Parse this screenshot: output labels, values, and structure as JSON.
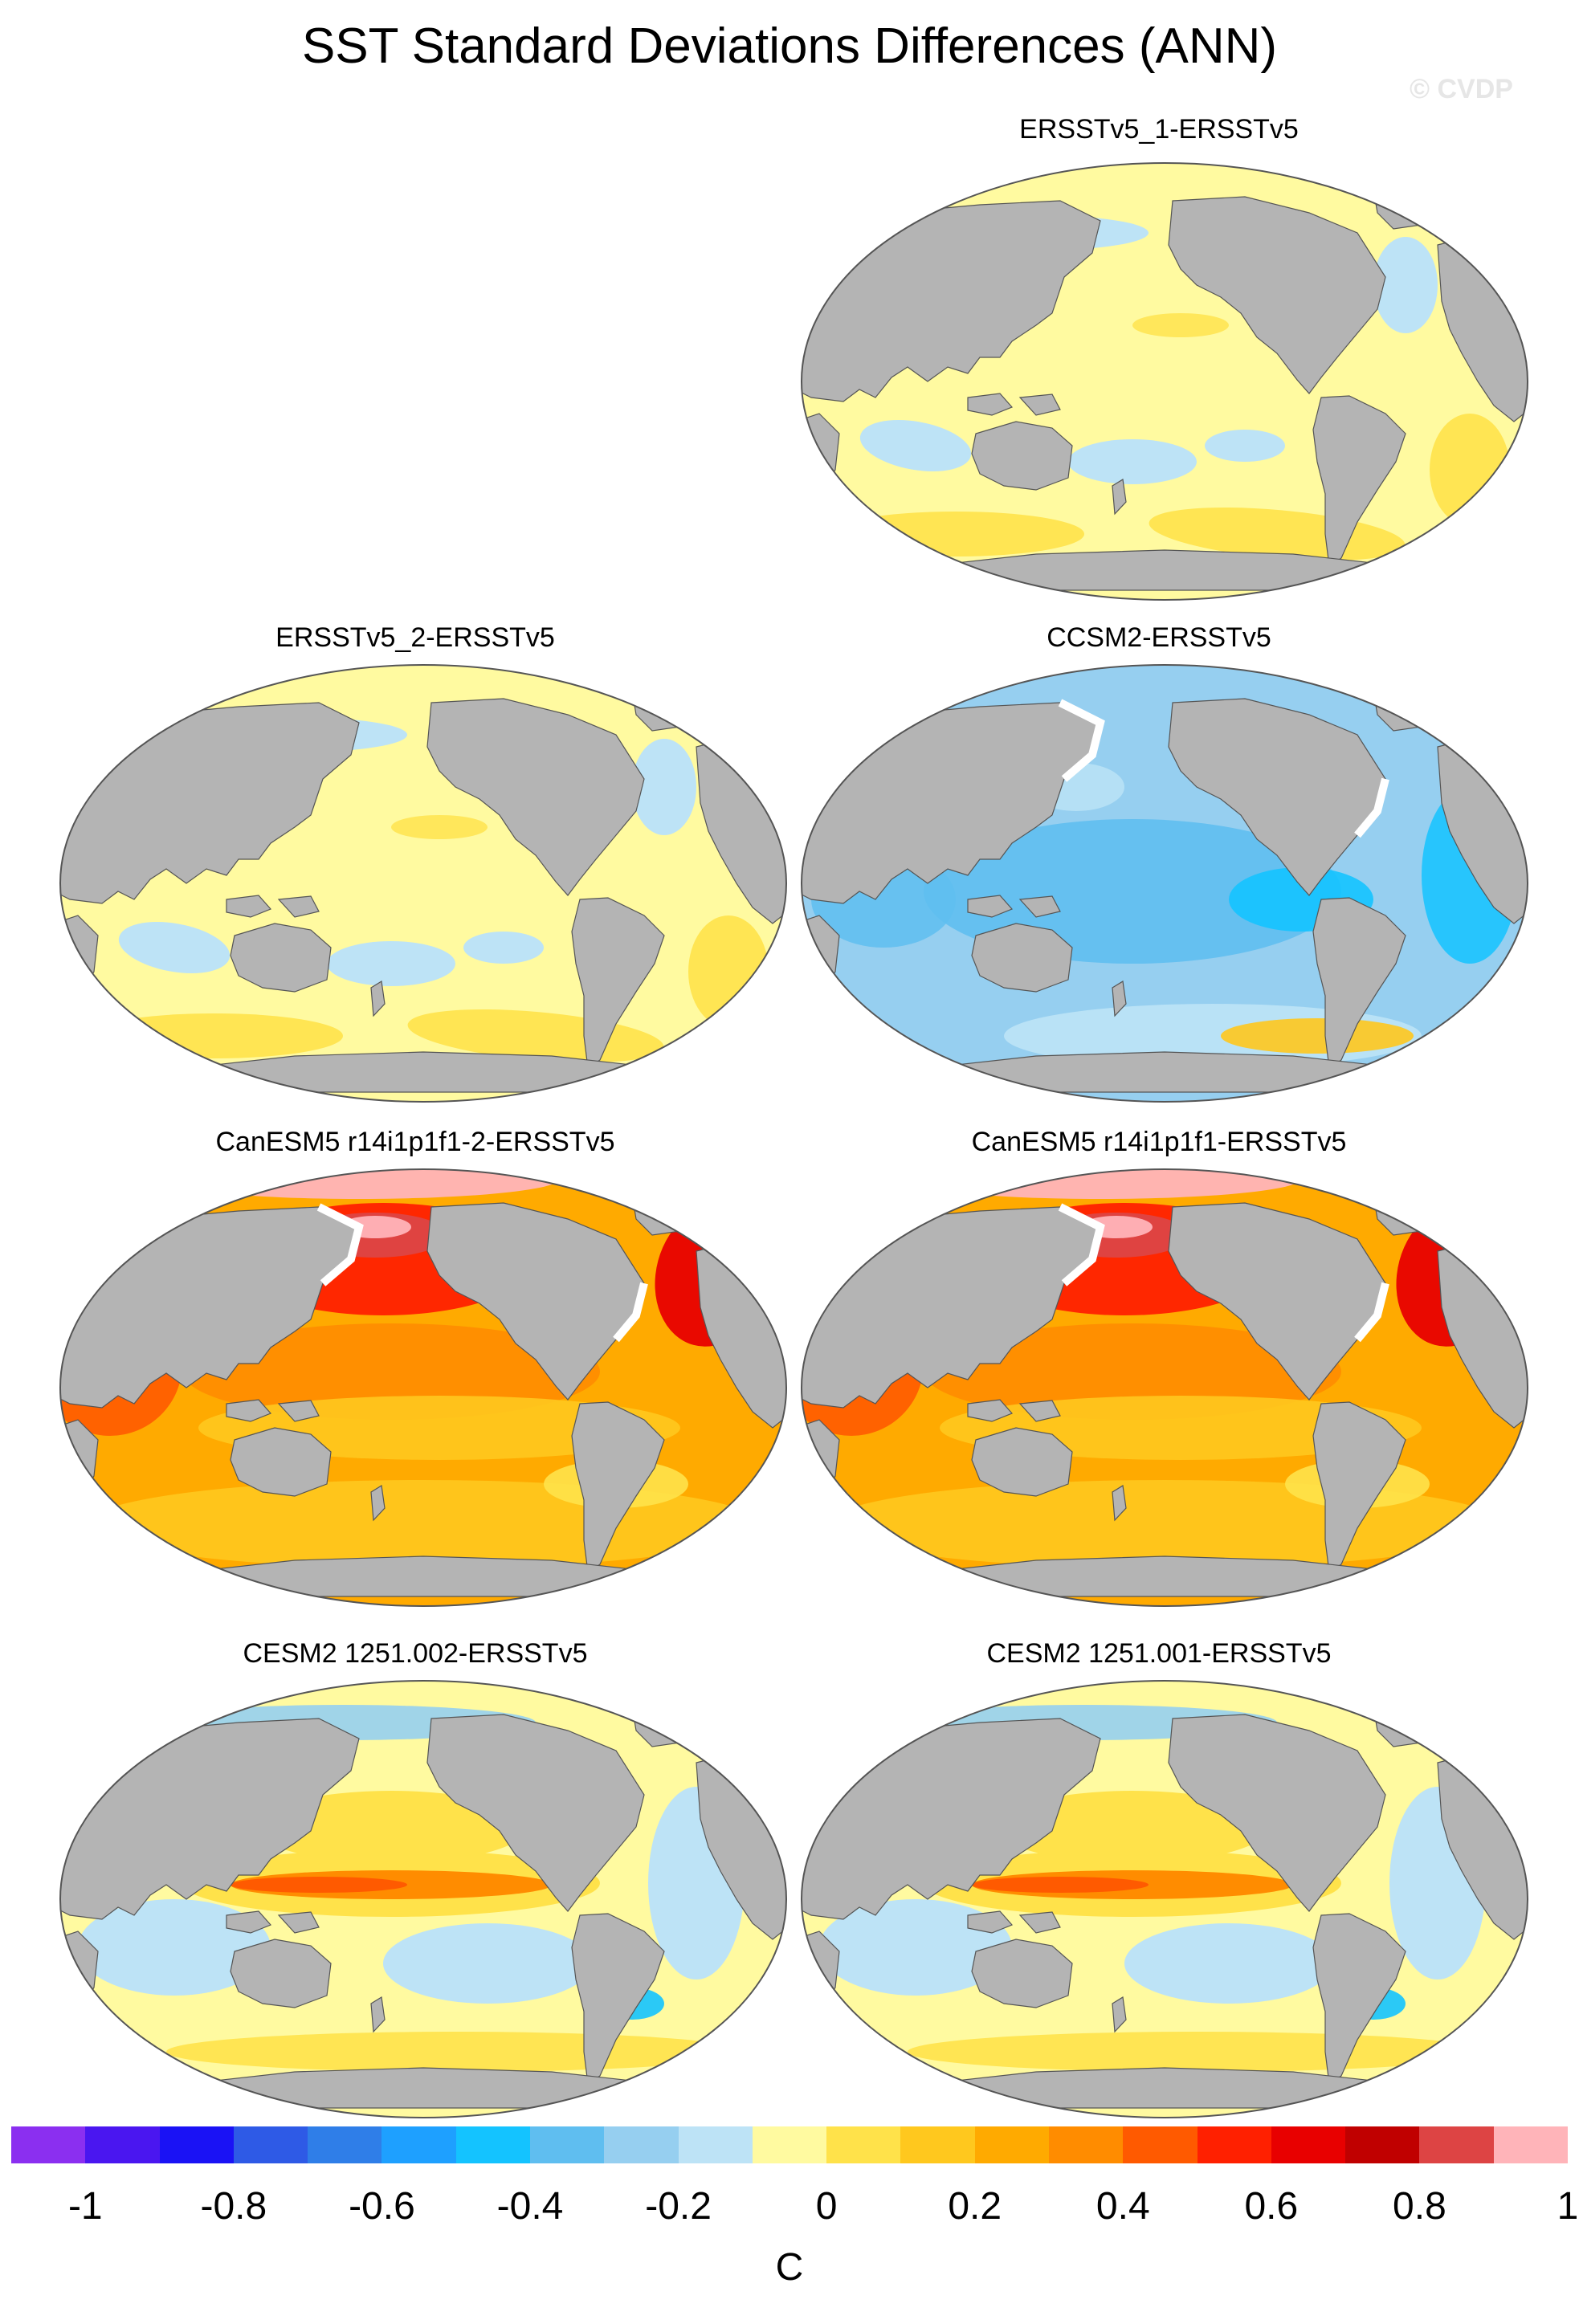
{
  "title": "SST Standard Deviations Differences (ANN)",
  "watermark": "© CVDP",
  "units": "C",
  "colors": {
    "land": "#b4b4b4",
    "outline": "#555555",
    "missing": "#ffffff",
    "scale": [
      "#8b2ff0",
      "#4a16f0",
      "#1a12f5",
      "#2e5ae6",
      "#2f7ee8",
      "#1ea0ff",
      "#14c3ff",
      "#5fbef0",
      "#96cff0",
      "#bde3f6",
      "#fffaa0",
      "#ffe24a",
      "#ffc81e",
      "#ffaa00",
      "#ff8c00",
      "#ff5a00",
      "#ff2000",
      "#e80000",
      "#c00000",
      "#dd4444",
      "#ffb4b9"
    ]
  },
  "colorbar": {
    "ticks": [
      "-1",
      "-0.8",
      "-0.6",
      "-0.4",
      "-0.2",
      "0",
      "0.2",
      "0.4",
      "0.6",
      "0.8",
      "1"
    ]
  },
  "panels": [
    {
      "title": "ERSSTv5_1-ERSSTv5",
      "pattern": "near-zero"
    },
    {
      "title": "ERSSTv5_2-ERSSTv5",
      "pattern": "near-zero"
    },
    {
      "title": "CCSM2-ERSSTv5",
      "pattern": "negative"
    },
    {
      "title": "CanESM5 r14i1p1f1-2-ERSSTv5",
      "pattern": "strong-positive"
    },
    {
      "title": "CanESM5 r14i1p1f1-ERSSTv5",
      "pattern": "strong-positive"
    },
    {
      "title": "CESM2 1251.002-ERSSTv5",
      "pattern": "enso-positive"
    },
    {
      "title": "CESM2 1251.001-ERSSTv5",
      "pattern": "enso-positive"
    }
  ]
}
